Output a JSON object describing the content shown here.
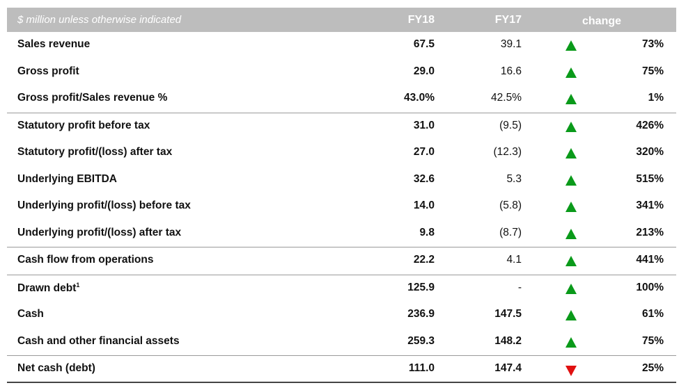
{
  "header": {
    "caption": "$ million unless otherwise indicated",
    "col_fy18": "FY18",
    "col_fy17": "FY17",
    "col_change": "change"
  },
  "rows": [
    {
      "label": "Sales revenue",
      "fy18": "67.5",
      "fy17": "39.1",
      "dir": "up",
      "change": "73%"
    },
    {
      "label": "Gross profit",
      "fy18": "29.0",
      "fy17": "16.6",
      "dir": "up",
      "change": "75%"
    },
    {
      "label": "Gross profit/Sales revenue %",
      "fy18": "43.0%",
      "fy17": "42.5%",
      "dir": "up",
      "change": "1%"
    },
    {
      "label": "Statutory profit before tax",
      "fy18": "31.0",
      "fy17": "(9.5)",
      "dir": "up",
      "change": "426%"
    },
    {
      "label": "Statutory profit/(loss) after tax",
      "fy18": "27.0",
      "fy17": "(12.3)",
      "dir": "up",
      "change": "320%"
    },
    {
      "label": "Underlying EBITDA",
      "fy18": "32.6",
      "fy17": "5.3",
      "dir": "up",
      "change": "515%"
    },
    {
      "label": "Underlying profit/(loss) before tax",
      "fy18": "14.0",
      "fy17": "(5.8)",
      "dir": "up",
      "change": "341%"
    },
    {
      "label": "Underlying profit/(loss) after tax",
      "fy18": "9.8",
      "fy17": "(8.7)",
      "dir": "up",
      "change": "213%"
    },
    {
      "label": "Cash flow from operations",
      "fy18": "22.2",
      "fy17": "4.1",
      "dir": "up",
      "change": "441%"
    },
    {
      "label": "Drawn debt",
      "label_sup": "1",
      "fy18": "125.9",
      "fy17": "-",
      "dir": "up",
      "change": "100%"
    },
    {
      "label": "Cash",
      "fy18": "236.9",
      "fy17": "147.5",
      "dir": "up",
      "change": "61%"
    },
    {
      "label": "Cash and other financial assets",
      "fy18": "259.3",
      "fy17": "148.2",
      "dir": "up",
      "change": "75%"
    },
    {
      "label": "Net cash (debt)",
      "fy18": "111.0",
      "fy17": "147.4",
      "dir": "down",
      "change": "25%"
    }
  ],
  "colors": {
    "up_arrow": "#0a9a1a",
    "down_arrow": "#e01010",
    "header_bg": "#bdbdbd"
  }
}
